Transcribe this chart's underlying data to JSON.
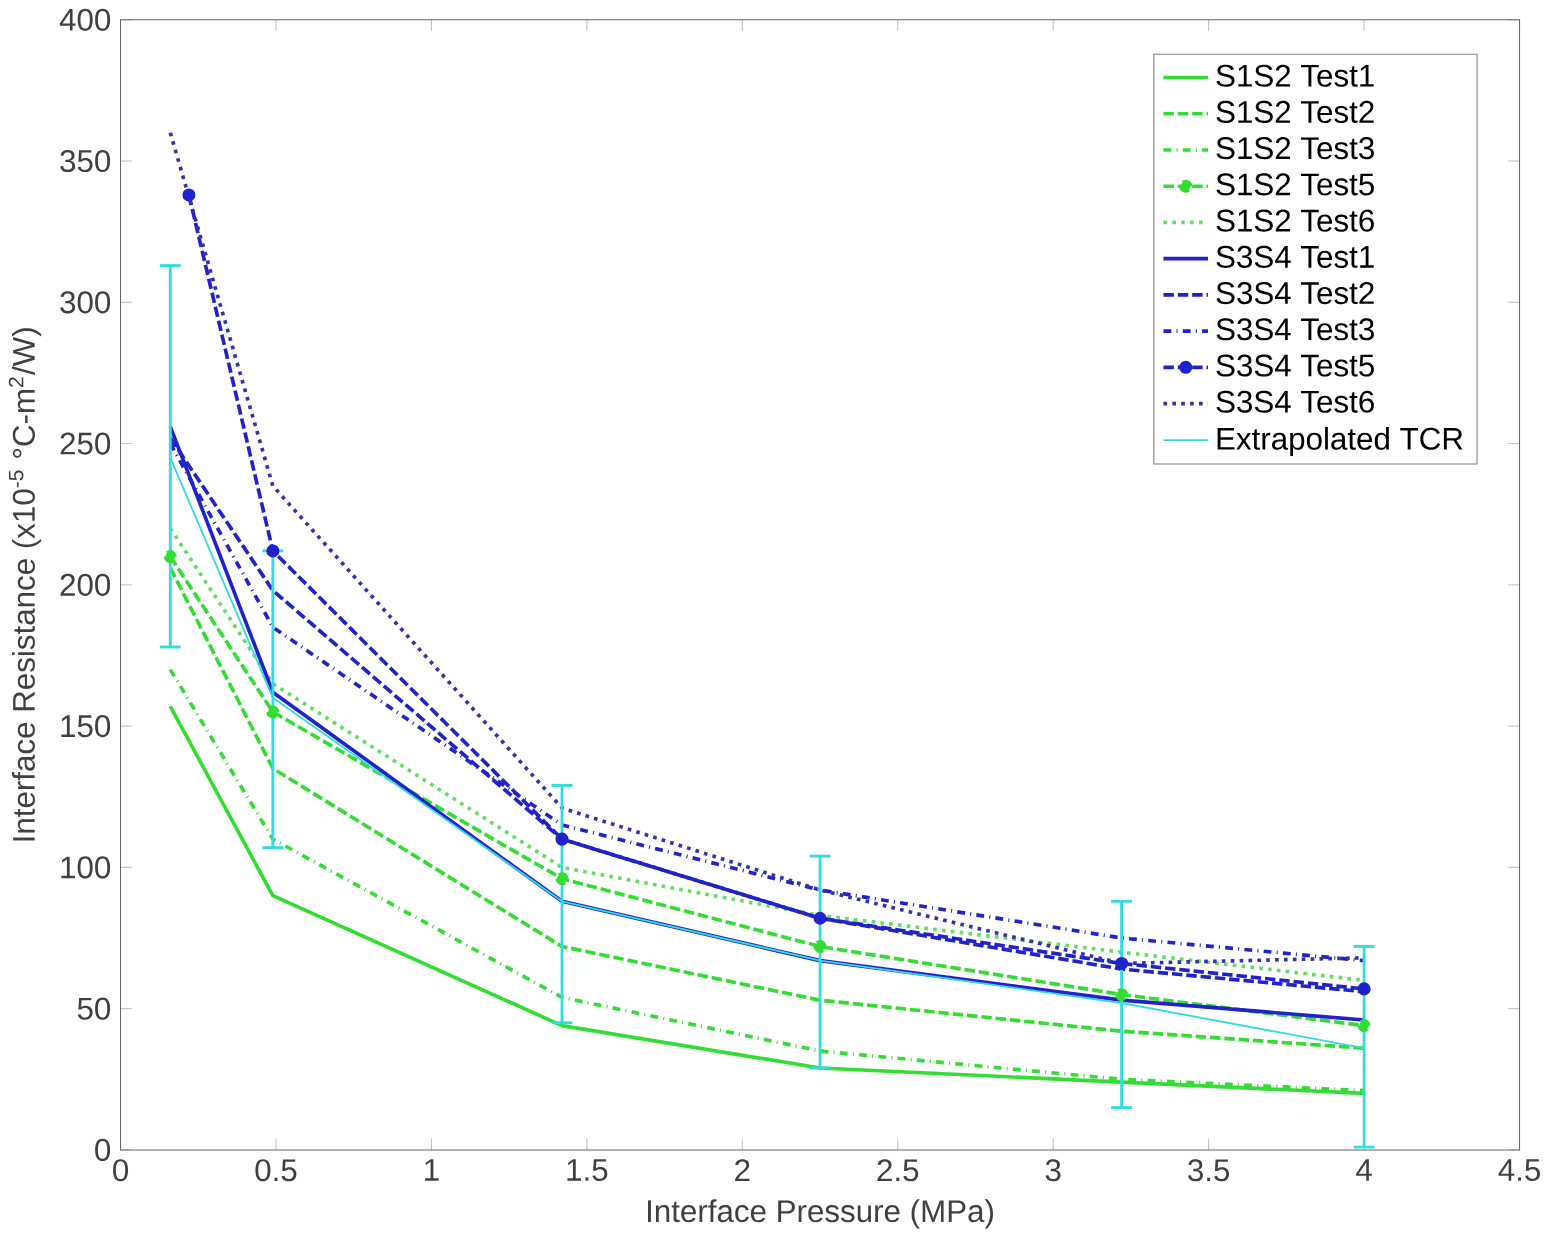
{
  "chart_data": {
    "type": "line",
    "xlabel": "Interface Pressure (MPa)",
    "ylabel": "Interface Resistance (x10$^{-5}$ °C-m$^{2}$/W)",
    "xlim": [
      0,
      4.5
    ],
    "xticks": [
      0,
      0.5,
      1,
      1.5,
      2,
      2.5,
      3,
      3.5,
      4,
      4.5
    ],
    "ylim": [
      0,
      400
    ],
    "yticks": [
      0,
      50,
      100,
      150,
      200,
      250,
      300,
      350,
      400
    ],
    "grid": false,
    "legend": "top right",
    "marker": "none",
    "series": [
      {
        "name": "S1S2 Test1",
        "color": "#33dd33",
        "line_style": "solid",
        "x": [
          0.16,
          0.49,
          1.42,
          2.25,
          3.22,
          4.0
        ],
        "values": [
          157,
          90,
          44,
          29,
          24,
          20
        ]
      },
      {
        "name": "S1S2 Test2",
        "color": "#33dd33",
        "line_style": "dashed",
        "x": [
          0.16,
          0.49,
          1.42,
          2.25,
          3.22,
          4.0
        ],
        "values": [
          206,
          135,
          72,
          53,
          42,
          36
        ]
      },
      {
        "name": "S1S2 Test3",
        "color": "#33dd33",
        "line_style": "dashdot",
        "x": [
          0.16,
          0.49,
          1.42,
          2.25,
          3.22,
          4.0
        ],
        "values": [
          170,
          110,
          54,
          35,
          25,
          21
        ]
      },
      {
        "name": "S1S2 Test5",
        "color": "#33dd33",
        "line_style": "dashed",
        "marker": "circle",
        "x": [
          0.16,
          0.49,
          1.42,
          2.25,
          3.22,
          4.0
        ],
        "values": [
          210,
          155,
          96,
          72,
          55,
          44
        ]
      },
      {
        "name": "S1S2 Test6",
        "color": "#66dd66",
        "line_style": "dotted",
        "x": [
          0.16,
          0.49,
          1.42,
          2.25,
          3.22,
          4.0
        ],
        "values": [
          220,
          165,
          100,
          83,
          70,
          60
        ]
      },
      {
        "name": "S3S4 Test1",
        "color": "#2222cc",
        "line_style": "solid",
        "x": [
          0.16,
          0.49,
          1.42,
          2.25,
          3.22,
          4.0
        ],
        "values": [
          256,
          162,
          88,
          67,
          53,
          46
        ]
      },
      {
        "name": "S3S4 Test2",
        "color": "#2222cc",
        "line_style": "dashed",
        "x": [
          0.16,
          0.49,
          1.42,
          2.25,
          3.22,
          4.0
        ],
        "values": [
          252,
          198,
          110,
          82,
          64,
          56
        ]
      },
      {
        "name": "S3S4 Test3",
        "color": "#2222cc",
        "line_style": "dashdot",
        "x": [
          0.16,
          0.49,
          1.42,
          2.25,
          3.22,
          4.0
        ],
        "values": [
          250,
          185,
          115,
          92,
          75,
          67
        ]
      },
      {
        "name": "S3S4 Test5",
        "color": "#2222cc",
        "line_style": "dashed",
        "marker": "circle",
        "x": [
          0.22,
          0.49,
          1.42,
          2.25,
          3.22,
          4.0
        ],
        "values": [
          338,
          212,
          110,
          82,
          66,
          57
        ]
      },
      {
        "name": "S3S4 Test6",
        "color": "#3333aa",
        "line_style": "dotted",
        "x": [
          0.16,
          0.49,
          1.42,
          2.25,
          3.22,
          4.0
        ],
        "values": [
          360,
          235,
          121,
          92,
          66,
          68
        ]
      },
      {
        "name": "Extrapolated TCR",
        "color": "#33dddd",
        "line_style": "solid",
        "x": [
          0.16,
          0.49,
          1.42,
          2.25,
          3.22,
          4.0
        ],
        "values": [
          245,
          160,
          88,
          67,
          52,
          36
        ],
        "errors": [
          [
            178,
            313
          ],
          [
            107,
            212
          ],
          [
            45,
            129
          ],
          [
            29,
            104
          ],
          [
            15,
            88
          ],
          [
            1,
            72
          ]
        ]
      }
    ]
  }
}
